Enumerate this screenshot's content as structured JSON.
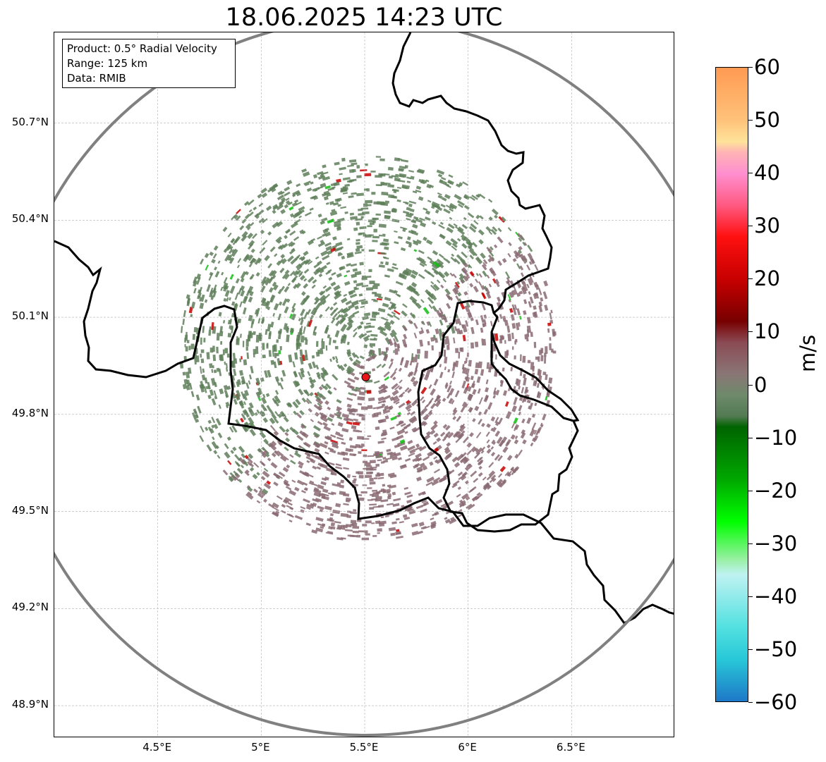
{
  "title": "18.06.2025 14:23 UTC",
  "info_box": {
    "product": "Product: 0.5° Radial Velocity",
    "range": "Range: 125 km",
    "source": "Data: RMIB"
  },
  "map": {
    "lon_range": [
      4.0,
      7.0
    ],
    "lat_range": [
      48.8,
      50.98
    ],
    "lat_ticks": [
      {
        "value": 50.7,
        "label": "50.7°N"
      },
      {
        "value": 50.4,
        "label": "50.4°N"
      },
      {
        "value": 50.1,
        "label": "50.1°N"
      },
      {
        "value": 49.8,
        "label": "49.8°N"
      },
      {
        "value": 49.5,
        "label": "49.5°N"
      },
      {
        "value": 49.2,
        "label": "49.2°N"
      },
      {
        "value": 48.9,
        "label": "48.9°N"
      }
    ],
    "lon_ticks": [
      {
        "value": 4.5,
        "label": "4.5°E"
      },
      {
        "value": 5.0,
        "label": "5°E"
      },
      {
        "value": 5.5,
        "label": "5.5°E"
      },
      {
        "value": 6.0,
        "label": "6°E"
      },
      {
        "value": 6.5,
        "label": "6.5°E"
      }
    ],
    "radar_site": {
      "lon": 5.505,
      "lat": 49.915,
      "color": "#e8141c"
    },
    "range_ring_color": "#808080",
    "border_color": "#000000",
    "echo_colors": {
      "receding": "#8a6a73",
      "approaching": "#5f7f5a"
    }
  },
  "colorbar": {
    "label": "m/s",
    "min": -60,
    "max": 60,
    "ticks": [
      {
        "value": 60,
        "label": "60"
      },
      {
        "value": 50,
        "label": "50"
      },
      {
        "value": 40,
        "label": "40"
      },
      {
        "value": 30,
        "label": "30"
      },
      {
        "value": 20,
        "label": "20"
      },
      {
        "value": 10,
        "label": "10"
      },
      {
        "value": 0,
        "label": "0"
      },
      {
        "value": -10,
        "label": "−10"
      },
      {
        "value": -20,
        "label": "−20"
      },
      {
        "value": -30,
        "label": "−30"
      },
      {
        "value": -40,
        "label": "−40"
      },
      {
        "value": -50,
        "label": "−50"
      },
      {
        "value": -60,
        "label": "−60"
      }
    ],
    "gradient_stops": [
      {
        "value": 60,
        "color": "#ff9a52"
      },
      {
        "value": 50,
        "color": "#ffc27a"
      },
      {
        "value": 46,
        "color": "#ffe39a"
      },
      {
        "value": 44,
        "color": "#ffb4b4"
      },
      {
        "value": 40,
        "color": "#ff8fd0"
      },
      {
        "value": 34,
        "color": "#ff5a82"
      },
      {
        "value": 28,
        "color": "#ff1010"
      },
      {
        "value": 20,
        "color": "#c80000"
      },
      {
        "value": 12,
        "color": "#780000"
      },
      {
        "value": 8,
        "color": "#8a4a54"
      },
      {
        "value": 2,
        "color": "#8a7676"
      },
      {
        "value": -2,
        "color": "#6e8a6a"
      },
      {
        "value": -6,
        "color": "#527a52"
      },
      {
        "value": -8,
        "color": "#006400"
      },
      {
        "value": -18,
        "color": "#00a800"
      },
      {
        "value": -26,
        "color": "#00ff00"
      },
      {
        "value": -33,
        "color": "#96f0a0"
      },
      {
        "value": -36,
        "color": "#bff2f2"
      },
      {
        "value": -46,
        "color": "#52e0e0"
      },
      {
        "value": -52,
        "color": "#28c8d8"
      },
      {
        "value": -60,
        "color": "#1e78c8"
      }
    ]
  }
}
